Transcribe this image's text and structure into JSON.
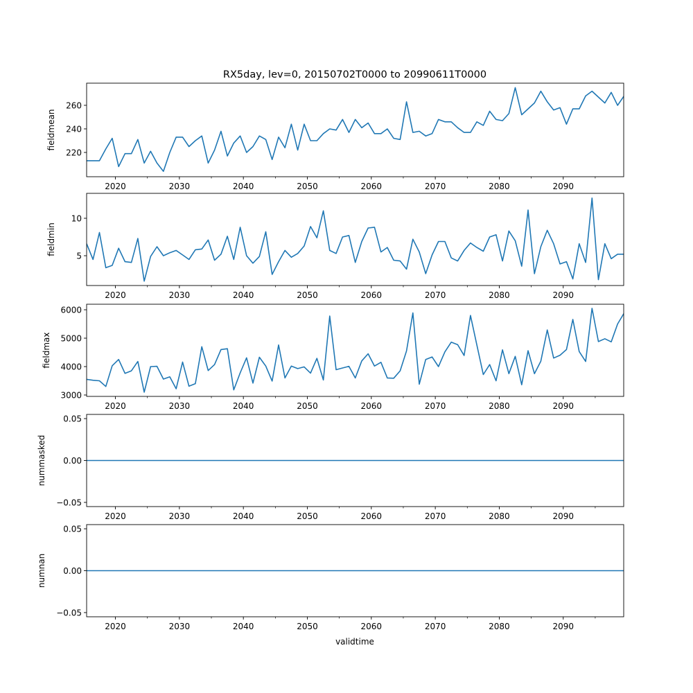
{
  "chart_data": [
    {
      "type": "line",
      "title": "RX5day, lev=0, 20150702T0000 to 20990611T0000",
      "ylabel": "fieldmean",
      "xlabel": "",
      "xlim": [
        2015.5,
        2099.45
      ],
      "ylim": [
        199.4,
        278.8
      ],
      "yticks": [
        220,
        240,
        260
      ],
      "ytick_labels": [
        "220",
        "240",
        "260"
      ],
      "color": "#1f77b4",
      "x_start": 2015.5,
      "x_step": 1,
      "values": [
        213,
        213,
        213,
        223,
        232,
        208,
        219,
        219,
        231,
        211,
        221,
        211,
        204,
        220,
        233,
        233,
        225,
        230,
        234,
        211,
        222,
        238,
        217,
        228,
        234,
        220,
        225,
        234,
        231,
        214,
        233,
        224,
        244,
        222,
        244,
        230,
        230,
        236,
        240,
        239,
        248,
        237,
        248,
        241,
        245,
        236,
        236,
        240,
        232,
        231,
        263,
        237,
        238,
        234,
        236,
        248,
        246,
        246,
        241,
        237,
        237,
        246,
        243,
        255,
        248,
        247,
        253,
        275,
        252,
        257,
        262,
        272,
        263,
        256,
        258,
        244,
        257,
        257,
        268,
        272,
        267,
        262,
        271,
        260,
        268
      ]
    },
    {
      "type": "line",
      "ylabel": "fieldmin",
      "xlim": [
        2015.5,
        2099.45
      ],
      "ylim": [
        1.02,
        13.33
      ],
      "yticks": [
        5,
        10
      ],
      "ytick_labels": [
        "5",
        "10"
      ],
      "color": "#1f77b4",
      "x_start": 2015.5,
      "x_step": 1,
      "values": [
        6.6,
        4.5,
        8.1,
        3.4,
        3.7,
        6.0,
        4.2,
        4.1,
        7.3,
        1.6,
        4.9,
        6.2,
        5.0,
        5.4,
        5.7,
        5.1,
        4.5,
        5.8,
        5.9,
        7.1,
        4.4,
        5.2,
        7.6,
        4.5,
        8.8,
        5.0,
        4.0,
        4.9,
        8.2,
        2.5,
        4.2,
        5.7,
        4.8,
        5.3,
        6.3,
        8.9,
        7.4,
        11.0,
        5.7,
        5.3,
        7.5,
        7.7,
        4.1,
        6.9,
        8.7,
        8.8,
        5.5,
        6.1,
        4.4,
        4.3,
        3.2,
        7.2,
        5.5,
        2.6,
        5.1,
        6.9,
        6.9,
        4.7,
        4.3,
        5.7,
        6.7,
        6.1,
        5.6,
        7.5,
        7.8,
        4.3,
        8.3,
        7.0,
        3.6,
        11.1,
        2.6,
        6.2,
        8.4,
        6.6,
        3.9,
        4.2,
        1.9,
        6.6,
        4.1,
        12.7,
        1.8,
        6.6,
        4.6,
        5.2,
        5.2
      ]
    },
    {
      "type": "line",
      "ylabel": "fieldmax",
      "xlim": [
        2015.5,
        2099.45
      ],
      "ylim": [
        2951,
        6195
      ],
      "yticks": [
        3000,
        4000,
        5000,
        6000
      ],
      "ytick_labels": [
        "3000",
        "4000",
        "5000",
        "6000"
      ],
      "color": "#1f77b4",
      "x_start": 2015.5,
      "x_step": 1,
      "values": [
        3550,
        3520,
        3500,
        3300,
        4030,
        4250,
        3760,
        3850,
        4180,
        3100,
        4000,
        4010,
        3560,
        3640,
        3220,
        4160,
        3310,
        3400,
        4700,
        3860,
        4070,
        4600,
        4630,
        3180,
        3780,
        4310,
        3420,
        4330,
        4020,
        3490,
        4760,
        3600,
        4020,
        3930,
        3990,
        3770,
        4290,
        3530,
        5780,
        3890,
        3950,
        4010,
        3600,
        4200,
        4450,
        4020,
        4150,
        3600,
        3590,
        3850,
        4550,
        5890,
        3380,
        4250,
        4340,
        4000,
        4520,
        4860,
        4770,
        4390,
        5800,
        4760,
        3720,
        4070,
        3500,
        4590,
        3750,
        4360,
        3360,
        4560,
        3750,
        4190,
        5290,
        4300,
        4400,
        4600,
        5660,
        4530,
        4180,
        6050,
        4880,
        4980,
        4870,
        5500,
        5880
      ]
    },
    {
      "type": "line",
      "ylabel": "nummasked",
      "xlim": [
        2015.5,
        2099.45
      ],
      "ylim": [
        -0.055,
        0.055
      ],
      "yticks": [
        -0.05,
        0,
        0.05
      ],
      "ytick_labels": [
        "−0.05",
        "0.00",
        "0.05"
      ],
      "color": "#1f77b4",
      "x_start": 2015.5,
      "x_step": 1,
      "constant": 0,
      "count": 85
    },
    {
      "type": "line",
      "ylabel": "numnan",
      "xlabel": "validtime",
      "xlim": [
        2015.5,
        2099.45
      ],
      "ylim": [
        -0.055,
        0.055
      ],
      "yticks": [
        -0.05,
        0,
        0.05
      ],
      "ytick_labels": [
        "−0.05",
        "0.00",
        "0.05"
      ],
      "color": "#1f77b4",
      "x_start": 2015.5,
      "x_step": 1,
      "constant": 0,
      "count": 85
    }
  ],
  "xticks": [
    2020,
    2030,
    2040,
    2050,
    2060,
    2070,
    2080,
    2090
  ],
  "xtick_labels": [
    "2020",
    "2030",
    "2040",
    "2050",
    "2060",
    "2070",
    "2080",
    "2090"
  ],
  "xminor": [
    2025,
    2035,
    2045,
    2055,
    2065,
    2075,
    2085,
    2095
  ]
}
